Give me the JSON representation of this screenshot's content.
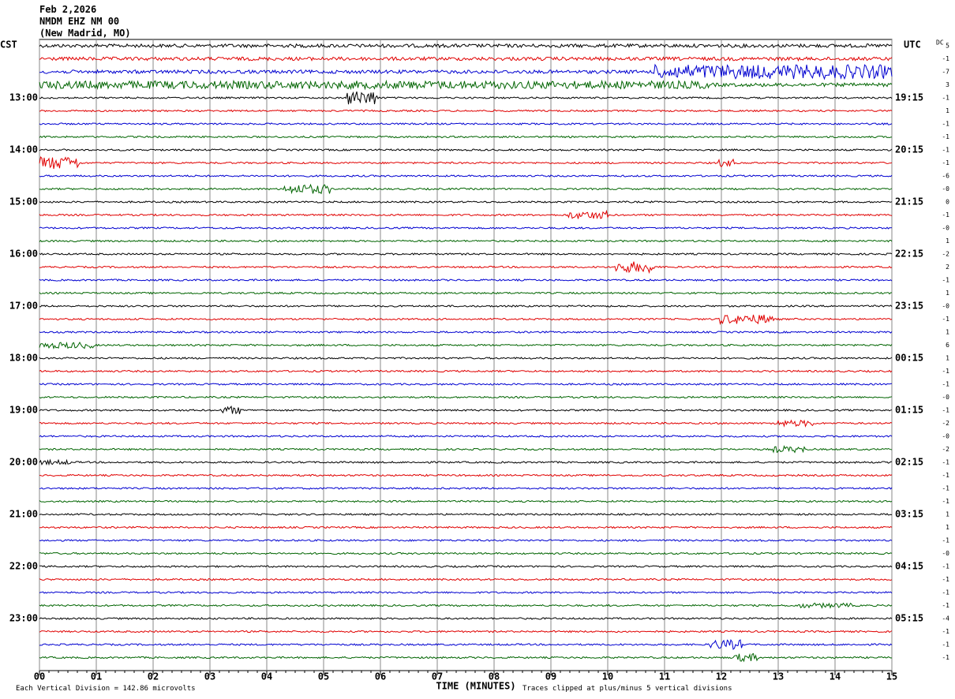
{
  "header": {
    "date": "Feb 2,2026",
    "station": "NMDM EHZ NM 00",
    "location": "(New Madrid, MO)"
  },
  "left_axis": {
    "title": "CST",
    "labels": [
      "13:00",
      "14:00",
      "15:00",
      "16:00",
      "17:00",
      "18:00",
      "19:00",
      "20:00",
      "21:00",
      "22:00",
      "23:00"
    ]
  },
  "right_axis": {
    "title": "UTC",
    "labels": [
      "19:15",
      "20:15",
      "21:15",
      "22:15",
      "23:15",
      "00:15",
      "01:15",
      "02:15",
      "03:15",
      "04:15",
      "05:15"
    ]
  },
  "dc": {
    "title": "DC",
    "values": [
      "5",
      "-1",
      "-7",
      "3",
      "-1",
      "1",
      "-1",
      "-1",
      "-1",
      "-1",
      "-6",
      "-0",
      "0",
      "-1",
      "-0",
      "1",
      "-2",
      "2",
      "-1",
      "1",
      "-0",
      "-1",
      "1",
      "6",
      "1",
      "-1",
      "-1",
      "-0",
      "-1",
      "-2",
      "-0",
      "-2",
      "-1",
      "-1",
      "-1",
      "-1",
      "1",
      "1",
      "-1",
      "-0",
      "-1",
      "-1",
      "-1",
      "-1",
      "-4",
      "-1",
      "-1",
      "-1"
    ]
  },
  "x_axis": {
    "title": "TIME (MINUTES)",
    "labels": [
      "00",
      "01",
      "02",
      "03",
      "04",
      "05",
      "06",
      "07",
      "08",
      "09",
      "10",
      "11",
      "12",
      "13",
      "14",
      "15"
    ]
  },
  "footer": {
    "scale": "Each Vertical Division =  142.86 microvolts",
    "clip": "Traces clipped at plus/minus 5 vertical divisions"
  },
  "trace_colors": [
    "#000000",
    "#e00000",
    "#0000d0",
    "#006400"
  ]
}
